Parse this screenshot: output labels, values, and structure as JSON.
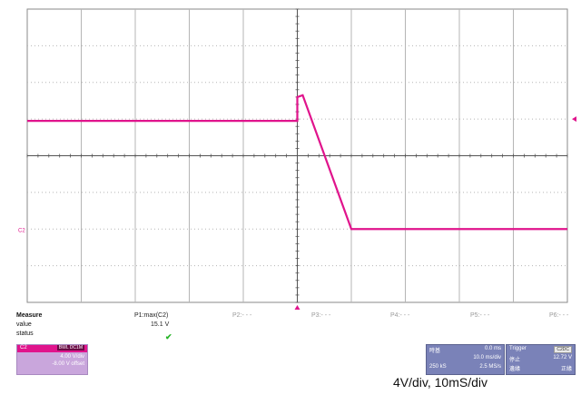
{
  "waveform": {
    "channel_marker": "C2",
    "trace_color": "#e0148c",
    "grid_color": "#8a8a8a",
    "background": "#ffffff",
    "divisions_x": 10,
    "divisions_y": 8,
    "description_points_div": [
      [
        0,
        3.05
      ],
      [
        5.0,
        3.05
      ],
      [
        5.0,
        2.4
      ],
      [
        5.1,
        2.35
      ],
      [
        6.0,
        6.0
      ],
      [
        10,
        6.0
      ]
    ]
  },
  "measure": {
    "title": "Measure",
    "row_value_label": "value",
    "row_status_label": "status",
    "p1_name": "P1:max(C2)",
    "p1_value": "15.1 V",
    "p1_status_icon": "check-icon",
    "p2": "P2:- - -",
    "p3": "P3:- - -",
    "p4": "P4:- - -",
    "p5": "P5:- - -",
    "p6": "P6:- - -"
  },
  "channel_box": {
    "name": "C2",
    "bw_badge": "BWL DC1M",
    "volts_per_div": "4.00 V/div",
    "offset": "-8.00 V offset",
    "color": "#e0148c"
  },
  "timebase_box": {
    "label": "時基",
    "delay": "0.0 ms",
    "time_per_div": "10.0 ms/div",
    "samples": "250 kS",
    "sample_rate": "2.5 MS/s"
  },
  "trigger_box": {
    "label": "Trigger",
    "badge": "C2DC",
    "mode": "停止",
    "level": "12.72 V",
    "edge_label": "邊緣",
    "slope": "正緣"
  },
  "caption": "4V/div, 10mS/div"
}
